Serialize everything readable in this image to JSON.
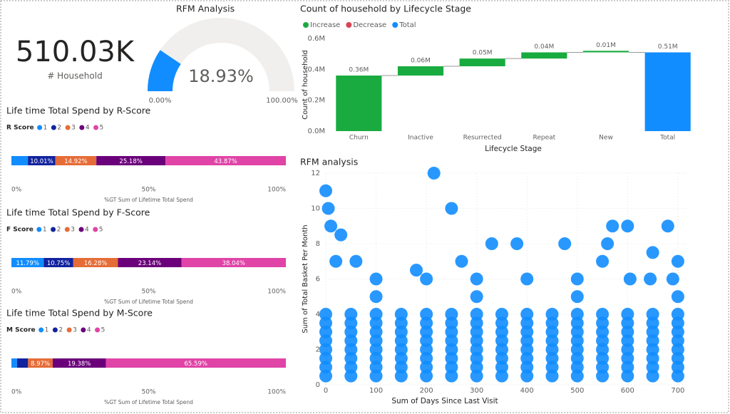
{
  "chart_data": [
    {
      "type": "card",
      "value": 510030,
      "value_label": "510.03K",
      "label": "# Household"
    },
    {
      "type": "gauge",
      "title": "RFM Analysis",
      "value": 18.93,
      "value_label": "18.93%",
      "ylim": [
        0,
        100
      ],
      "yticks": [
        {
          "value": 0,
          "label": "0.00%"
        },
        {
          "value": 100,
          "label": "100.00%"
        }
      ],
      "color": "#118dff",
      "track_color": "#f0efed"
    },
    {
      "type": "waterfall",
      "title": "Count of household by Lifecycle Stage",
      "legend": [
        {
          "name": "Increase",
          "color": "#1aab40"
        },
        {
          "name": "Decrease",
          "color": "#d64554"
        },
        {
          "name": "Total",
          "color": "#118dff"
        }
      ],
      "categories": [
        "Churn",
        "Inactive",
        "Resurrected",
        "Repeat",
        "New",
        "Total"
      ],
      "values": [
        0.36,
        0.06,
        0.05,
        0.04,
        0.01,
        0.51
      ],
      "value_labels": [
        "0.36M",
        "0.06M",
        "0.05M",
        "0.04M",
        "0.01M",
        "0.51M"
      ],
      "is_total": [
        false,
        false,
        false,
        false,
        false,
        true
      ],
      "ylim": [
        0,
        0.6
      ],
      "yticks": [
        {
          "value": 0,
          "label": "0.0M"
        },
        {
          "value": 0.2,
          "label": "0.2M"
        },
        {
          "value": 0.4,
          "label": "0.4M"
        },
        {
          "value": 0.6,
          "label": "0.6M"
        }
      ],
      "xlabel": "Lifecycle Stage",
      "ylabel": "Count of household"
    },
    {
      "type": "stacked_bar_100",
      "title": "Life time Total Spend by R-Score",
      "legend_title": "R Score",
      "series": [
        {
          "name": "1",
          "color": "#118dff",
          "values": [
            6.02
          ],
          "value_labels": [
            null
          ]
        },
        {
          "name": "2",
          "color": "#12239e",
          "values": [
            10.01
          ],
          "value_labels": [
            "10.01%"
          ]
        },
        {
          "name": "3",
          "color": "#e66c37",
          "values": [
            14.92
          ],
          "value_labels": [
            "14.92%"
          ]
        },
        {
          "name": "4",
          "color": "#6b007b",
          "values": [
            25.18
          ],
          "value_labels": [
            "25.18%"
          ]
        },
        {
          "name": "5",
          "color": "#e044a7",
          "values": [
            43.87
          ],
          "value_labels": [
            "43.87%"
          ]
        }
      ],
      "xlim": [
        0,
        100
      ],
      "xticks": [
        {
          "value": 0,
          "label": "0%"
        },
        {
          "value": 50,
          "label": "50%"
        },
        {
          "value": 100,
          "label": "100%"
        }
      ],
      "xlabel": "%GT Sum of Lifetime Total Spend"
    },
    {
      "type": "stacked_bar_100",
      "title": "Life time Total Spend by F-Score",
      "legend_title": "F Score",
      "series": [
        {
          "name": "1",
          "color": "#118dff",
          "values": [
            11.79
          ],
          "value_labels": [
            "11.79%"
          ]
        },
        {
          "name": "2",
          "color": "#12239e",
          "values": [
            10.75
          ],
          "value_labels": [
            "10.75%"
          ]
        },
        {
          "name": "3",
          "color": "#e66c37",
          "values": [
            16.28
          ],
          "value_labels": [
            "16.28%"
          ]
        },
        {
          "name": "4",
          "color": "#6b007b",
          "values": [
            23.14
          ],
          "value_labels": [
            "23.14%"
          ]
        },
        {
          "name": "5",
          "color": "#e044a7",
          "values": [
            38.04
          ],
          "value_labels": [
            "38.04%"
          ]
        }
      ],
      "xlim": [
        0,
        100
      ],
      "xticks": [
        {
          "value": 0,
          "label": "0%"
        },
        {
          "value": 50,
          "label": "50%"
        },
        {
          "value": 100,
          "label": "100%"
        }
      ],
      "xlabel": "%GT Sum of Lifetime Total Spend"
    },
    {
      "type": "stacked_bar_100",
      "title": "Life time Total Spend by M-Score",
      "legend_title": "M Score",
      "series": [
        {
          "name": "1",
          "color": "#118dff",
          "values": [
            2.06
          ],
          "value_labels": [
            null
          ]
        },
        {
          "name": "2",
          "color": "#12239e",
          "values": [
            4.0
          ],
          "value_labels": [
            null
          ]
        },
        {
          "name": "3",
          "color": "#e66c37",
          "values": [
            8.97
          ],
          "value_labels": [
            "8.97%"
          ]
        },
        {
          "name": "4",
          "color": "#6b007b",
          "values": [
            19.38
          ],
          "value_labels": [
            "19.38%"
          ]
        },
        {
          "name": "5",
          "color": "#e044a7",
          "values": [
            65.59
          ],
          "value_labels": [
            "65.59%"
          ]
        }
      ],
      "xlim": [
        0,
        100
      ],
      "xticks": [
        {
          "value": 0,
          "label": "0%"
        },
        {
          "value": 50,
          "label": "50%"
        },
        {
          "value": 100,
          "label": "100%"
        }
      ],
      "xlabel": "%GT Sum of Lifetime Total Spend"
    },
    {
      "type": "scatter",
      "title": "RFM analysis",
      "xlabel": "Sum of Days Since Last Visit",
      "ylabel": "Sum of Total Basket Per Month",
      "color": "#118dff",
      "grid": true,
      "xlim": [
        0,
        720
      ],
      "xticks": [
        0,
        100,
        200,
        300,
        400,
        500,
        600,
        700
      ],
      "ylim": [
        0,
        12
      ],
      "yticks": [
        0,
        2,
        4,
        6,
        8,
        10,
        12
      ],
      "x": [
        0,
        50,
        100,
        150,
        200,
        250,
        300,
        350,
        400,
        450,
        500,
        550,
        600,
        650,
        700,
        0,
        50,
        100,
        150,
        200,
        250,
        300,
        350,
        400,
        450,
        500,
        550,
        600,
        650,
        700,
        0,
        50,
        100,
        150,
        200,
        250,
        300,
        350,
        400,
        450,
        500,
        550,
        600,
        650,
        700,
        0,
        50,
        100,
        150,
        200,
        250,
        300,
        350,
        400,
        450,
        500,
        550,
        600,
        650,
        700,
        0,
        50,
        100,
        150,
        200,
        250,
        300,
        350,
        400,
        450,
        500,
        550,
        600,
        650,
        700,
        0,
        50,
        100,
        150,
        200,
        250,
        300,
        350,
        400,
        450,
        500,
        550,
        600,
        650,
        700,
        0,
        50,
        100,
        150,
        200,
        250,
        300,
        350,
        400,
        450,
        500,
        550,
        600,
        650,
        700,
        0,
        50,
        100,
        150,
        200,
        250,
        300,
        350,
        400,
        450,
        500,
        550,
        600,
        650,
        700,
        0,
        215,
        250,
        5,
        30,
        10,
        570,
        600,
        680,
        560,
        475,
        380,
        330,
        20,
        700,
        650,
        645,
        605,
        690,
        100,
        200,
        300,
        400,
        500,
        100,
        300,
        500,
        700,
        550,
        60,
        180,
        270
      ],
      "y": [
        0.5,
        0.5,
        0.5,
        0.5,
        0.5,
        0.5,
        0.5,
        0.5,
        0.5,
        0.5,
        0.5,
        0.5,
        0.5,
        0.5,
        0.5,
        1,
        1,
        1,
        1,
        1,
        1,
        1,
        1,
        1,
        1,
        1,
        1,
        1,
        1,
        1,
        1.5,
        1.5,
        1.5,
        1.5,
        1.5,
        1.5,
        1.5,
        1.5,
        1.5,
        1.5,
        1.5,
        1.5,
        1.5,
        1.5,
        1.5,
        2,
        2,
        2,
        2,
        2,
        2,
        2,
        2,
        2,
        2,
        2,
        2,
        2,
        2,
        2,
        2.5,
        2.5,
        2.5,
        2.5,
        2.5,
        2.5,
        2.5,
        2.5,
        2.5,
        2.5,
        2.5,
        2.5,
        2.5,
        2.5,
        2.5,
        3,
        3,
        3,
        3,
        3,
        3,
        3,
        3,
        3,
        3,
        3,
        3,
        3,
        3,
        3,
        3.5,
        3.5,
        3.5,
        3.5,
        3.5,
        3.5,
        3.5,
        3.5,
        3.5,
        3.5,
        3.5,
        3.5,
        3.5,
        3.5,
        3.5,
        4,
        4,
        4,
        4,
        4,
        4,
        4,
        4,
        4,
        4,
        4,
        4,
        4,
        4,
        4,
        11,
        12,
        10,
        10,
        8.5,
        9,
        9,
        9,
        9,
        8,
        8,
        8,
        8,
        7,
        7,
        7.5,
        6,
        6,
        6,
        6,
        6,
        6,
        6,
        6,
        5,
        5,
        5,
        5,
        7,
        7,
        6.5,
        7
      ]
    }
  ]
}
